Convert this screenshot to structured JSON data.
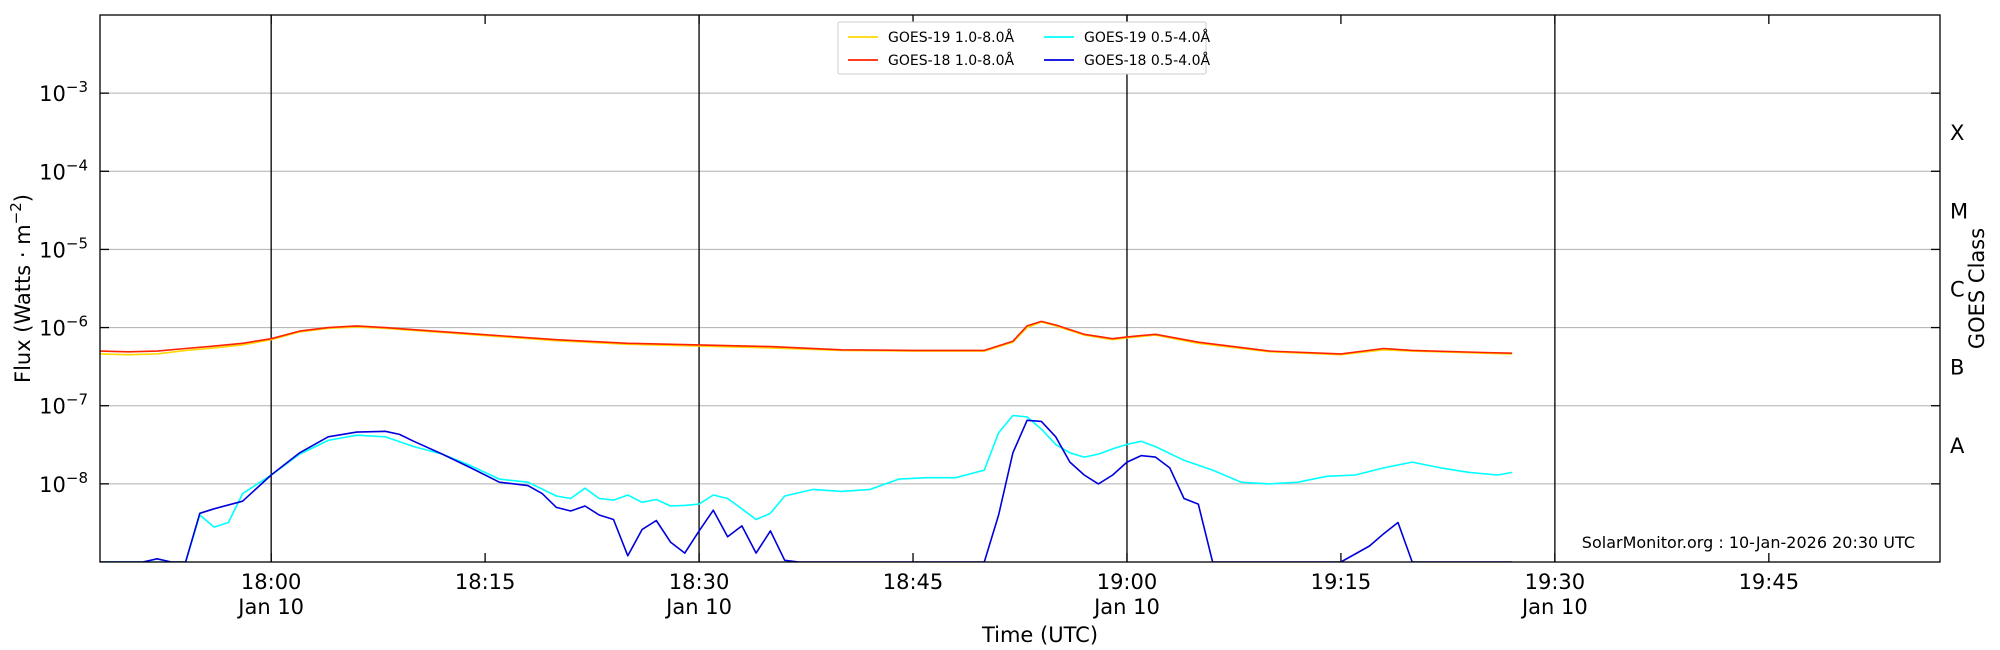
{
  "chart_data": {
    "type": "line",
    "xlabel": "Time (UTC)",
    "ylabel": "Flux (Watts · m^-2)",
    "ylabel_parts": {
      "base": "Flux (Watts · m",
      "sup": "−2",
      "close": ")"
    },
    "right_label": "GOES Class",
    "y_scale": "log",
    "xlim": [
      "17:48",
      "19:57"
    ],
    "ylim": [
      1e-09,
      0.01
    ],
    "grid": "horizontal at decades",
    "legend_placement": "top-center",
    "credit": "SolarMonitor.org : 10-Jan-2026 20:30 UTC",
    "x_ticks": [
      {
        "time": "18:00",
        "label": "18:00",
        "sublabel": "Jan 10",
        "vline": true
      },
      {
        "time": "18:15",
        "label": "18:15",
        "sublabel": "",
        "vline": false
      },
      {
        "time": "18:30",
        "label": "18:30",
        "sublabel": "Jan 10",
        "vline": true
      },
      {
        "time": "18:45",
        "label": "18:45",
        "sublabel": "",
        "vline": false
      },
      {
        "time": "19:00",
        "label": "19:00",
        "sublabel": "Jan 10",
        "vline": true
      },
      {
        "time": "19:15",
        "label": "19:15",
        "sublabel": "",
        "vline": false
      },
      {
        "time": "19:30",
        "label": "19:30",
        "sublabel": "Jan 10",
        "vline": true
      },
      {
        "time": "19:45",
        "label": "19:45",
        "sublabel": "",
        "vline": false
      }
    ],
    "y_ticks": [
      {
        "value": 1e-08,
        "exp": "−8"
      },
      {
        "value": 1e-07,
        "exp": "−7"
      },
      {
        "value": 1e-06,
        "exp": "−6"
      },
      {
        "value": 1e-05,
        "exp": "−5"
      },
      {
        "value": 0.0001,
        "exp": "−4"
      },
      {
        "value": 0.001,
        "exp": "−3"
      }
    ],
    "goes_classes": [
      {
        "label": "A",
        "value": 3.16e-08
      },
      {
        "label": "B",
        "value": 3.16e-07
      },
      {
        "label": "C",
        "value": 3.16e-06
      },
      {
        "label": "M",
        "value": 3.16e-05
      },
      {
        "label": "X",
        "value": 0.000316
      }
    ],
    "series": [
      {
        "name": "GOES-19 1.0-8.0Å",
        "color": "#ffd700",
        "x": [
          "17:48",
          "17:50",
          "17:52",
          "17:54",
          "17:56",
          "17:58",
          "18:00",
          "18:02",
          "18:04",
          "18:06",
          "18:08",
          "18:10",
          "18:15",
          "18:20",
          "18:25",
          "18:30",
          "18:35",
          "18:40",
          "18:45",
          "18:50",
          "18:52",
          "18:53",
          "18:54",
          "18:55",
          "18:57",
          "18:59",
          "19:00",
          "19:02",
          "19:05",
          "19:10",
          "19:15",
          "19:18",
          "19:20",
          "19:25",
          "19:27"
        ],
        "values": [
          4.6e-07,
          4.5e-07,
          4.6e-07,
          5.1e-07,
          5.5e-07,
          6e-07,
          7e-07,
          8.8e-07,
          9.8e-07,
          1.02e-06,
          9.8e-07,
          9.2e-07,
          7.9e-07,
          6.8e-07,
          6.1e-07,
          5.8e-07,
          5.5e-07,
          5.1e-07,
          5e-07,
          5e-07,
          6.5e-07,
          1e-06,
          1.18e-06,
          1.05e-06,
          8e-07,
          7e-07,
          7.4e-07,
          8e-07,
          6.3e-07,
          4.9e-07,
          4.5e-07,
          5.2e-07,
          5e-07,
          4.7e-07,
          4.6e-07
        ]
      },
      {
        "name": "GOES-18 1.0-8.0Å",
        "color": "#ff2200",
        "x": [
          "17:48",
          "17:50",
          "17:52",
          "17:54",
          "17:56",
          "17:58",
          "18:00",
          "18:02",
          "18:04",
          "18:06",
          "18:08",
          "18:10",
          "18:15",
          "18:20",
          "18:25",
          "18:30",
          "18:35",
          "18:40",
          "18:45",
          "18:50",
          "18:52",
          "18:53",
          "18:54",
          "18:55",
          "18:57",
          "18:59",
          "19:00",
          "19:02",
          "19:05",
          "19:10",
          "19:15",
          "19:18",
          "19:20",
          "19:25",
          "19:27"
        ],
        "values": [
          5e-07,
          4.9e-07,
          5e-07,
          5.4e-07,
          5.8e-07,
          6.3e-07,
          7.2e-07,
          9e-07,
          1e-06,
          1.05e-06,
          1e-06,
          9.4e-07,
          8.1e-07,
          7e-07,
          6.3e-07,
          6e-07,
          5.7e-07,
          5.2e-07,
          5.1e-07,
          5.1e-07,
          6.7e-07,
          1.05e-06,
          1.2e-06,
          1.08e-06,
          8.2e-07,
          7.2e-07,
          7.6e-07,
          8.2e-07,
          6.5e-07,
          5e-07,
          4.6e-07,
          5.4e-07,
          5.1e-07,
          4.8e-07,
          4.7e-07
        ]
      },
      {
        "name": "GOES-19 0.5-4.0Å",
        "color": "#00ffff",
        "x": [
          "17:48",
          "17:52",
          "17:54",
          "17:55",
          "17:56",
          "17:57",
          "17:58",
          "18:00",
          "18:02",
          "18:04",
          "18:06",
          "18:08",
          "18:10",
          "18:12",
          "18:14",
          "18:16",
          "18:18",
          "18:20",
          "18:21",
          "18:22",
          "18:23",
          "18:24",
          "18:25",
          "18:26",
          "18:27",
          "18:28",
          "18:29",
          "18:30",
          "18:31",
          "18:32",
          "18:33",
          "18:34",
          "18:35",
          "18:36",
          "18:38",
          "18:40",
          "18:42",
          "18:44",
          "18:46",
          "18:48",
          "18:50",
          "18:51",
          "18:52",
          "18:53",
          "18:54",
          "18:55",
          "18:56",
          "18:57",
          "18:58",
          "18:59",
          "19:00",
          "19:01",
          "19:02",
          "19:04",
          "19:06",
          "19:08",
          "19:10",
          "19:12",
          "19:14",
          "19:16",
          "19:18",
          "19:20",
          "19:22",
          "19:24",
          "19:26",
          "19:27"
        ],
        "values": [
          1e-09,
          1e-09,
          1e-09,
          4e-09,
          2.8e-09,
          3.2e-09,
          7.5e-09,
          1.3e-08,
          2.4e-08,
          3.6e-08,
          4.2e-08,
          4e-08,
          3e-08,
          2.4e-08,
          1.7e-08,
          1.15e-08,
          1.05e-08,
          7e-09,
          6.5e-09,
          8.8e-09,
          6.5e-09,
          6.2e-09,
          7.2e-09,
          5.8e-09,
          6.3e-09,
          5.2e-09,
          5.3e-09,
          5.5e-09,
          7.2e-09,
          6.5e-09,
          4.8e-09,
          3.5e-09,
          4.2e-09,
          7e-09,
          8.5e-09,
          8e-09,
          8.5e-09,
          1.15e-08,
          1.2e-08,
          1.2e-08,
          1.5e-08,
          4.5e-08,
          7.5e-08,
          7.2e-08,
          5e-08,
          3.2e-08,
          2.5e-08,
          2.2e-08,
          2.4e-08,
          2.8e-08,
          3.2e-08,
          3.5e-08,
          3e-08,
          2e-08,
          1.5e-08,
          1.05e-08,
          1e-08,
          1.05e-08,
          1.25e-08,
          1.3e-08,
          1.6e-08,
          1.9e-08,
          1.6e-08,
          1.4e-08,
          1.3e-08,
          1.4e-08
        ]
      },
      {
        "name": "GOES-18 0.5-4.0Å",
        "color": "#0000dd",
        "x": [
          "17:48",
          "17:51",
          "17:52",
          "17:53",
          "17:54",
          "17:55",
          "17:56",
          "17:58",
          "18:00",
          "18:02",
          "18:04",
          "18:06",
          "18:08",
          "18:09",
          "18:10",
          "18:12",
          "18:14",
          "18:16",
          "18:18",
          "18:19",
          "18:20",
          "18:21",
          "18:22",
          "18:23",
          "18:24",
          "18:25",
          "18:26",
          "18:27",
          "18:28",
          "18:29",
          "18:30",
          "18:31",
          "18:32",
          "18:33",
          "18:34",
          "18:35",
          "18:36",
          "18:37",
          "18:40",
          "18:45",
          "18:50",
          "18:51",
          "18:52",
          "18:53",
          "18:54",
          "18:55",
          "18:56",
          "18:57",
          "18:58",
          "18:59",
          "19:00",
          "19:01",
          "19:02",
          "19:03",
          "19:04",
          "19:05",
          "19:06",
          "19:10",
          "19:15",
          "19:17",
          "19:18",
          "19:19",
          "19:20",
          "19:22",
          "19:27"
        ],
        "values": [
          1e-09,
          1e-09,
          1.1e-09,
          1e-09,
          1e-09,
          4.2e-09,
          4.8e-09,
          6e-09,
          1.3e-08,
          2.5e-08,
          4e-08,
          4.6e-08,
          4.7e-08,
          4.3e-08,
          3.5e-08,
          2.4e-08,
          1.6e-08,
          1.05e-08,
          9.5e-09,
          7.5e-09,
          5e-09,
          4.5e-09,
          5.2e-09,
          4e-09,
          3.5e-09,
          1.2e-09,
          2.6e-09,
          3.4e-09,
          1.8e-09,
          1.3e-09,
          2.5e-09,
          4.6e-09,
          2.1e-09,
          2.9e-09,
          1.3e-09,
          2.5e-09,
          1.05e-09,
          1e-09,
          1e-09,
          1e-09,
          1e-09,
          4e-09,
          2.5e-08,
          6.5e-08,
          6.3e-08,
          4e-08,
          1.9e-08,
          1.3e-08,
          1e-08,
          1.3e-08,
          1.9e-08,
          2.3e-08,
          2.2e-08,
          1.6e-08,
          6.5e-09,
          5.5e-09,
          1e-09,
          1e-09,
          1e-09,
          1.6e-09,
          2.3e-09,
          3.2e-09,
          1e-09,
          1e-09,
          1e-09
        ]
      }
    ]
  }
}
